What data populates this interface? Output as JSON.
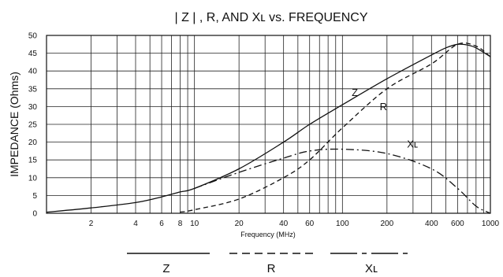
{
  "chart_data": {
    "type": "line",
    "title": "| Z | , R, AND Xʟ vs. FREQUENCY",
    "xlabel": "Frequency (MHz)",
    "ylabel": "IMPEDANCE (Ohms)",
    "x_scale": "log",
    "xlim": [
      1,
      1000
    ],
    "ylim": [
      0,
      50
    ],
    "grid": true,
    "x_ticks": [
      2,
      4,
      6,
      8,
      10,
      20,
      40,
      60,
      100,
      200,
      400,
      600,
      1000
    ],
    "y_ticks": [
      0,
      5,
      10,
      15,
      20,
      25,
      30,
      35,
      40,
      45,
      50
    ],
    "series": [
      {
        "name": "Z",
        "style": "solid",
        "x": [
          1,
          2,
          4,
          6,
          8,
          10,
          20,
          40,
          60,
          100,
          200,
          400,
          500,
          600,
          700,
          800,
          1000
        ],
        "y": [
          0.3,
          1.5,
          3,
          4.6,
          6,
          7,
          12.5,
          20,
          25,
          30.5,
          37.8,
          44.5,
          46.5,
          47.5,
          47.3,
          46.5,
          44
        ]
      },
      {
        "name": "R",
        "style": "dashed",
        "x": [
          8,
          10,
          20,
          40,
          60,
          100,
          200,
          400,
          600,
          800,
          1000
        ],
        "y": [
          0.3,
          1,
          4,
          10,
          15,
          24,
          35,
          42,
          47.5,
          47,
          44
        ]
      },
      {
        "name": "Xʟ",
        "style": "dashdot",
        "x": [
          10,
          20,
          40,
          60,
          100,
          200,
          400,
          600,
          800,
          1000
        ],
        "y": [
          7,
          11.5,
          15.5,
          17.5,
          18,
          16.8,
          12.5,
          7,
          2,
          0
        ]
      }
    ],
    "curve_labels": [
      "Z",
      "R",
      "Xʟ"
    ],
    "legend": {
      "placement": "bottom",
      "items": [
        {
          "label": "Z",
          "style": "solid"
        },
        {
          "label": "R",
          "style": "dashed"
        },
        {
          "label": "Xʟ",
          "style": "dashdot"
        }
      ]
    }
  }
}
